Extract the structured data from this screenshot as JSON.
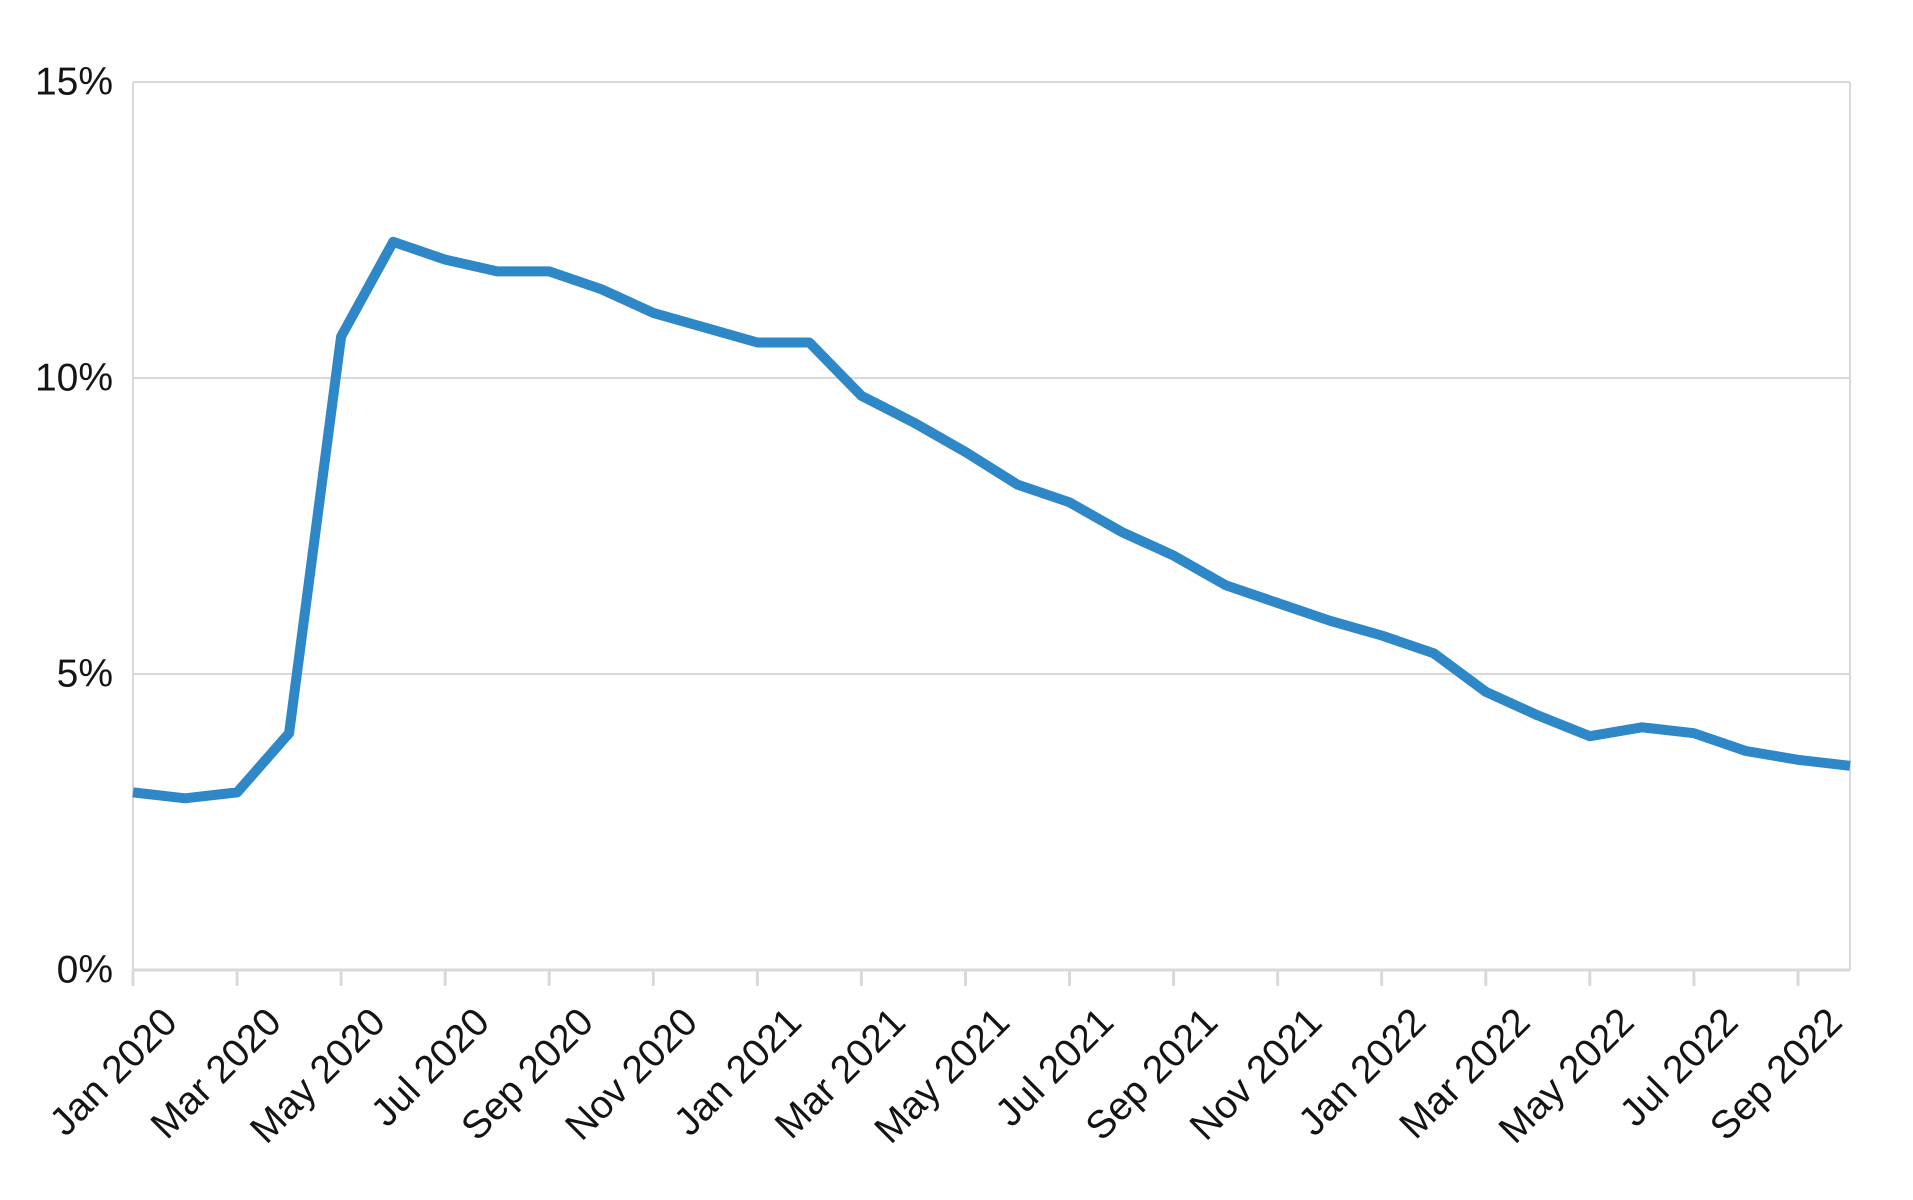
{
  "chart_data": {
    "type": "line",
    "title": "",
    "xlabel": "",
    "ylabel": "",
    "x": [
      "Jan 2020",
      "Feb 2020",
      "Mar 2020",
      "Apr 2020",
      "May 2020",
      "Jun 2020",
      "Jul 2020",
      "Aug 2020",
      "Sep 2020",
      "Oct 2020",
      "Nov 2020",
      "Dec 2020",
      "Jan 2021",
      "Feb 2021",
      "Mar 2021",
      "Apr 2021",
      "May 2021",
      "Jun 2021",
      "Jul 2021",
      "Aug 2021",
      "Sep 2021",
      "Oct 2021",
      "Nov 2021",
      "Dec 2021",
      "Jan 2022",
      "Feb 2022",
      "Mar 2022",
      "Apr 2022",
      "May 2022",
      "Jun 2022",
      "Jul 2022",
      "Aug 2022",
      "Sep 2022",
      "Oct 2022"
    ],
    "series": [
      {
        "name": "rate",
        "values": [
          3.0,
          2.9,
          3.0,
          4.0,
          10.7,
          12.3,
          12.0,
          11.8,
          11.8,
          11.5,
          11.1,
          10.85,
          10.6,
          10.6,
          9.7,
          9.25,
          8.75,
          8.2,
          7.9,
          7.4,
          7.0,
          6.5,
          6.2,
          5.9,
          5.65,
          5.35,
          4.7,
          4.3,
          3.95,
          4.1,
          4.0,
          3.7,
          3.55,
          3.45
        ]
      }
    ],
    "ylim": [
      0,
      15
    ],
    "y_ticks": [
      0,
      5,
      10,
      15
    ],
    "y_tick_suffix": "%",
    "x_label_step": 2,
    "x_label_rotation": -45,
    "grid": "horizontal",
    "legend": "none",
    "line_width": 10,
    "colors": {
      "line": "#2e87c6",
      "grid": "#d9d9d9",
      "text": "#141414",
      "background": "#ffffff"
    }
  }
}
